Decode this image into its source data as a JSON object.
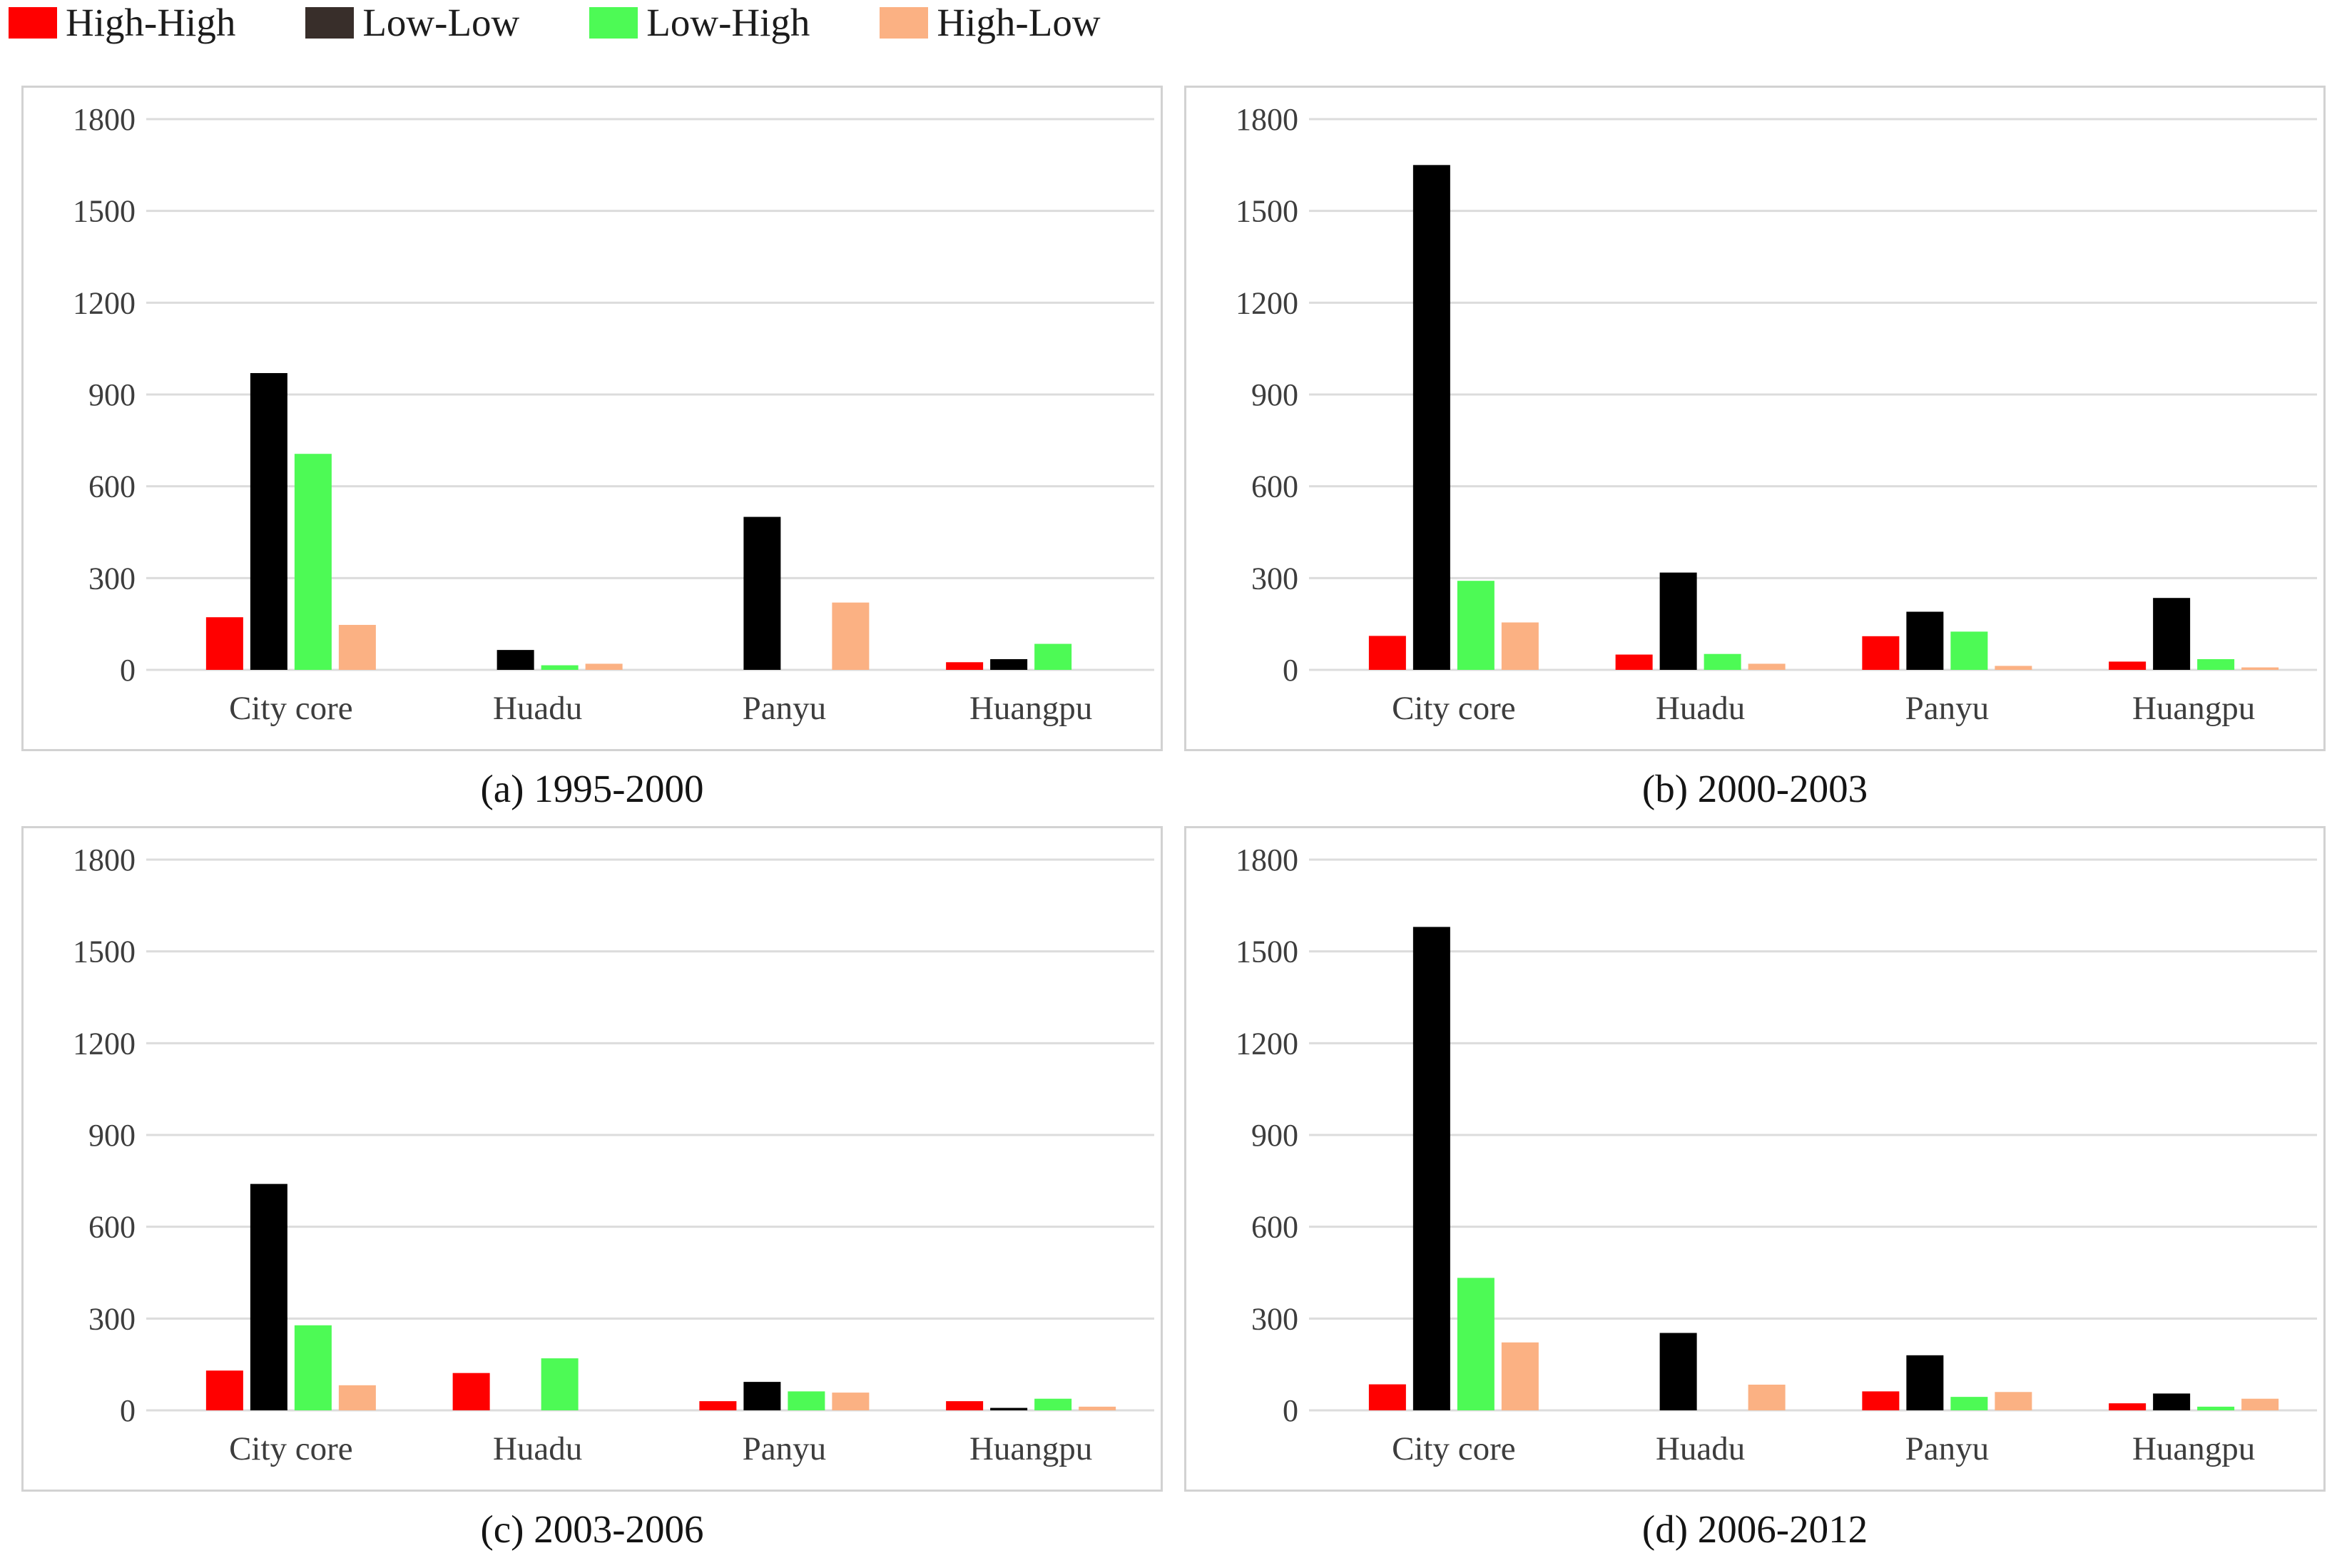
{
  "legend": {
    "items": [
      {
        "label": "High-High",
        "swatch_color": "#ff0000"
      },
      {
        "label": "Low-Low",
        "swatch_color": "#382e2a"
      },
      {
        "label": "Low-High",
        "swatch_color": "#4dfa55"
      },
      {
        "label": "High-Low",
        "swatch_color": "#fbb183"
      }
    ]
  },
  "axis": {
    "ymin": 0,
    "ymax": 1800,
    "step": 300,
    "tick_labels": [
      "1800",
      "1500",
      "1200",
      "900",
      "600",
      "300",
      "0"
    ],
    "gridline_color": "#dcdcdc",
    "border_color": "#d2d2d2",
    "tick_text_color": "#3d3d3d"
  },
  "categories": [
    "City core",
    "Huadu",
    "Panyu",
    "Huangpu"
  ],
  "series_colors": {
    "High-High": "#ff0000",
    "Low-Low": "#000000",
    "Low-High": "#4dfa55",
    "High-Low": "#fbb183"
  },
  "chart_data": [
    {
      "type": "bar",
      "title": "(a) 1995-2000",
      "categories": [
        "City core",
        "Huadu",
        "Panyu",
        "Huangpu"
      ],
      "ylim": [
        0,
        1800
      ],
      "grid": true,
      "legend_position": "top-left",
      "series": [
        {
          "name": "High-High",
          "values": [
            172,
            0,
            0,
            25
          ]
        },
        {
          "name": "Low-Low",
          "values": [
            970,
            65,
            500,
            35
          ]
        },
        {
          "name": "Low-High",
          "values": [
            706,
            15,
            0,
            85
          ]
        },
        {
          "name": "High-Low",
          "values": [
            147,
            20,
            220,
            0
          ]
        }
      ]
    },
    {
      "type": "bar",
      "title": "(b) 2000-2003",
      "categories": [
        "City core",
        "Huadu",
        "Panyu",
        "Huangpu"
      ],
      "ylim": [
        0,
        1800
      ],
      "grid": true,
      "series": [
        {
          "name": "High-High",
          "values": [
            111,
            50,
            110,
            27
          ]
        },
        {
          "name": "Low-Low",
          "values": [
            1650,
            318,
            190,
            235
          ]
        },
        {
          "name": "Low-High",
          "values": [
            291,
            52,
            125,
            35
          ]
        },
        {
          "name": "High-Low",
          "values": [
            155,
            20,
            13,
            8
          ]
        }
      ]
    },
    {
      "type": "bar",
      "title": "(c) 2003-2006",
      "categories": [
        "City core",
        "Huadu",
        "Panyu",
        "Huangpu"
      ],
      "ylim": [
        0,
        1800
      ],
      "grid": true,
      "series": [
        {
          "name": "High-High",
          "values": [
            130,
            122,
            30,
            30
          ]
        },
        {
          "name": "Low-Low",
          "values": [
            740,
            0,
            93,
            8
          ]
        },
        {
          "name": "Low-High",
          "values": [
            278,
            170,
            62,
            38
          ]
        },
        {
          "name": "High-Low",
          "values": [
            82,
            0,
            58,
            12
          ]
        }
      ]
    },
    {
      "type": "bar",
      "title": "(d) 2006-2012",
      "categories": [
        "City core",
        "Huadu",
        "Panyu",
        "Huangpu"
      ],
      "ylim": [
        0,
        1800
      ],
      "grid": true,
      "series": [
        {
          "name": "High-High",
          "values": [
            85,
            0,
            62,
            23
          ]
        },
        {
          "name": "Low-Low",
          "values": [
            1580,
            253,
            180,
            55
          ]
        },
        {
          "name": "Low-High",
          "values": [
            433,
            0,
            44,
            12
          ]
        },
        {
          "name": "High-Low",
          "values": [
            222,
            84,
            60,
            38
          ]
        }
      ]
    }
  ]
}
